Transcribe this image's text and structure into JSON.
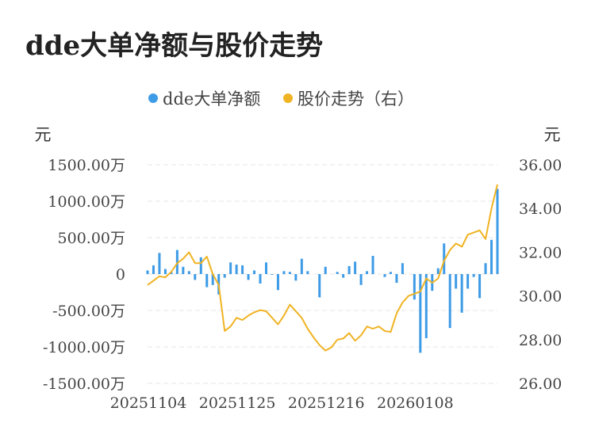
{
  "title": "dde大单净额与股价走势",
  "chart_data": {
    "type": "bar+line",
    "legend": [
      "dde大单净额",
      "股价走势（右）"
    ],
    "left_unit": "元",
    "right_unit": "元",
    "left_ticks": [
      "1500.00万",
      "1000.00万",
      "500.00万",
      "0",
      "-500.00万",
      "-1000.00万",
      "-1500.00万"
    ],
    "right_ticks": [
      "36.00",
      "34.00",
      "32.00",
      "30.00",
      "28.00",
      "26.00"
    ],
    "left_ylim": [
      -1500,
      1500
    ],
    "right_ylim": [
      26,
      36
    ],
    "x_ticks": [
      "20251104",
      "20251125",
      "20251216",
      "20260108"
    ],
    "x_tick_indices": [
      0,
      15,
      30,
      45
    ],
    "colors": {
      "bar": "#3e9be6",
      "line": "#f0b323",
      "grid": "#e6e6e6"
    },
    "series": [
      {
        "name": "dde大单净额",
        "kind": "bar",
        "values": [
          50,
          120,
          290,
          70,
          30,
          330,
          100,
          40,
          -80,
          230,
          -180,
          -150,
          -280,
          -50,
          160,
          130,
          120,
          -80,
          50,
          -130,
          160,
          -10,
          -220,
          40,
          30,
          -90,
          210,
          40,
          0,
          -320,
          100,
          0,
          30,
          -50,
          110,
          170,
          -150,
          40,
          250,
          0,
          -40,
          30,
          -120,
          150,
          0,
          -350,
          -1080,
          -880,
          -230,
          80,
          420,
          -740,
          -200,
          -530,
          -200,
          -40,
          -330,
          150,
          470,
          1170
        ]
      },
      {
        "name": "股价走势（右）",
        "kind": "line",
        "values": [
          30.5,
          30.7,
          30.9,
          30.85,
          31.1,
          31.5,
          31.7,
          32.0,
          31.5,
          31.5,
          31.8,
          31.0,
          30.5,
          28.4,
          28.6,
          29.0,
          28.9,
          29.1,
          29.25,
          29.35,
          29.3,
          29.0,
          28.7,
          29.1,
          29.6,
          29.3,
          29.0,
          28.5,
          28.1,
          27.75,
          27.5,
          27.65,
          28.0,
          28.05,
          28.3,
          27.95,
          28.2,
          28.6,
          28.5,
          28.6,
          28.4,
          28.35,
          29.2,
          29.7,
          30.0,
          30.1,
          30.2,
          30.8,
          30.6,
          30.8,
          31.6,
          32.1,
          32.4,
          32.25,
          32.8,
          32.9,
          33.0,
          32.6,
          34.0,
          35.1
        ]
      }
    ]
  }
}
